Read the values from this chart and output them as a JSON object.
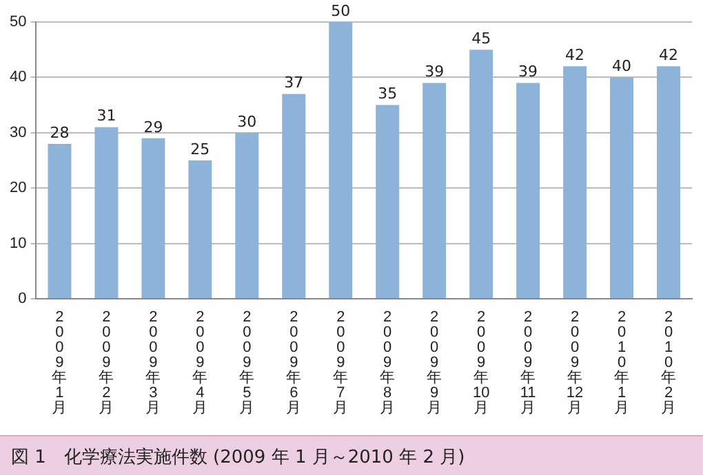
{
  "chart_data": {
    "type": "bar",
    "categories": [
      "2009年1月",
      "2009年2月",
      "2009年3月",
      "2009年4月",
      "2009年5月",
      "2009年6月",
      "2009年7月",
      "2009年8月",
      "2009年9月",
      "2009年10月",
      "2009年11月",
      "2009年12月",
      "2010年1月",
      "2010年2月"
    ],
    "values": [
      28,
      31,
      29,
      25,
      30,
      37,
      50,
      35,
      39,
      45,
      39,
      42,
      40,
      42
    ],
    "color": "#8db3d9",
    "ylim": [
      0,
      50
    ],
    "yticks": [
      0,
      10,
      20,
      30,
      40,
      50
    ],
    "grid": "y",
    "data_labels": true,
    "annotations": [
      "図 1　化学療法実施件数 (2009 年 1 月～2010 年 2 月)"
    ]
  }
}
